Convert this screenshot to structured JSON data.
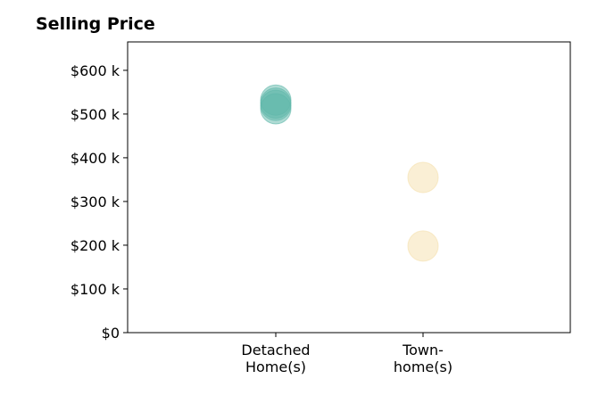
{
  "chart_data": {
    "type": "scatter",
    "title": "Selling Price",
    "xlabel": "",
    "ylabel": "",
    "ylim": [
      0,
      665
    ],
    "yticks": [
      {
        "value": 0,
        "label": "$0"
      },
      {
        "value": 100,
        "label": "$100 k"
      },
      {
        "value": 200,
        "label": "$200 k"
      },
      {
        "value": 300,
        "label": "$300 k"
      },
      {
        "value": 400,
        "label": "$400 k"
      },
      {
        "value": 500,
        "label": "$500 k"
      },
      {
        "value": 600,
        "label": "$600 k"
      }
    ],
    "categories": [
      {
        "lines": [
          "Detached",
          "Home(s)"
        ],
        "color": "#5fb8aa"
      },
      {
        "lines": [
          "Town-",
          "home(s)"
        ],
        "color": "#f5dfac"
      }
    ],
    "points": [
      {
        "category": 0,
        "y": 532
      },
      {
        "category": 0,
        "y": 525
      },
      {
        "category": 0,
        "y": 520
      },
      {
        "category": 0,
        "y": 512
      },
      {
        "category": 1,
        "y": 355
      },
      {
        "category": 1,
        "y": 198
      }
    ],
    "grid": false,
    "legend": "none"
  }
}
